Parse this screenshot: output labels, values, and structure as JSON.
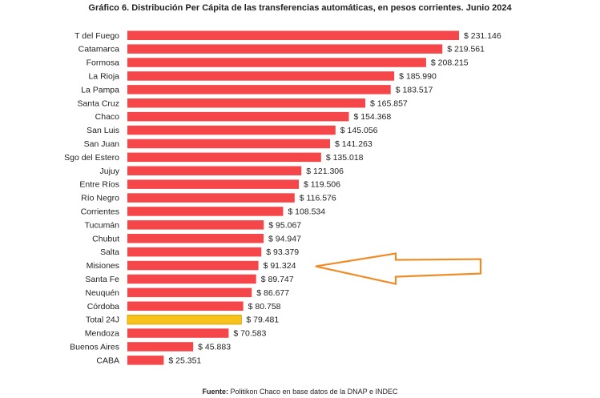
{
  "chart_data": {
    "type": "bar",
    "orientation": "horizontal",
    "title": "Gráfico 6. Distribución Per Cápita de las transferencias automáticas, en pesos corrientes. Junio 2024",
    "source_label": "Fuente:",
    "source_text": "Politikon Chaco en base datos de la DNAP e INDEC",
    "value_prefix": "$ ",
    "categories": [
      "T del Fuego",
      "Catamarca",
      "Formosa",
      "La Rioja",
      "La Pampa",
      "Santa Cruz",
      "Chaco",
      "San Luis",
      "San Juan",
      "Sgo del Estero",
      "Jujuy",
      "Entre Ríos",
      "Río Negro",
      "Corrientes",
      "Tucumán",
      "Chubut",
      "Salta",
      "Misiones",
      "Santa Fe",
      "Neuquén",
      "Córdoba",
      "Total 24J",
      "Mendoza",
      "Buenos Aires",
      "CABA"
    ],
    "values": [
      231146,
      219561,
      208215,
      185990,
      183517,
      165857,
      154368,
      145056,
      141263,
      135018,
      121306,
      119506,
      116576,
      108534,
      95067,
      94947,
      93379,
      91324,
      89747,
      86677,
      80758,
      79481,
      70583,
      45883,
      25351
    ],
    "value_labels": [
      "231.146",
      "219.561",
      "208.215",
      "185.990",
      "183.517",
      "165.857",
      "154.368",
      "145.056",
      "141.263",
      "135.018",
      "121.306",
      "119.506",
      "116.576",
      "108.534",
      "95.067",
      "94.947",
      "93.379",
      "91.324",
      "89.747",
      "86.677",
      "80.758",
      "79.481",
      "70.583",
      "45.883",
      "25.351"
    ],
    "xlim": [
      0,
      231146
    ],
    "grid": false,
    "colors": {
      "bar": "#f5474a",
      "highlight_bar": "#f7c21a",
      "arrow": "#f08a24"
    },
    "highlighted_category": "Total 24J",
    "annotation": {
      "type": "arrow",
      "points_to": "Misiones"
    }
  }
}
